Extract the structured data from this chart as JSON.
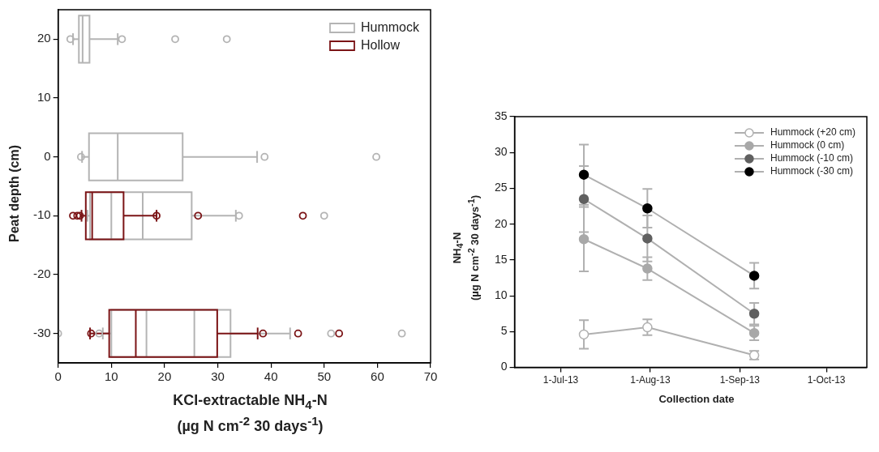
{
  "chart_data": [
    {
      "type": "box",
      "orientation": "horizontal",
      "xlabel": "KCl-extractable NH$_{4}$-N\n(µg N cm$^{-2}$ 30 days$^{-1}$)",
      "ylabel": "Peat depth (cm)",
      "xlim": [
        0,
        70
      ],
      "xticks": [
        0,
        10,
        20,
        30,
        40,
        50,
        60,
        70
      ],
      "ylim": [
        -35,
        25
      ],
      "yticks": [
        -30,
        -20,
        -10,
        0,
        10,
        20
      ],
      "grid": false,
      "legend": "top right",
      "series": [
        {
          "name": "Hummock",
          "color": "#b4b4b4",
          "x": [
            20,
            0,
            -10,
            -30
          ],
          "boxes": [
            {
              "low": 2.8,
              "q1": 3.9,
              "median": 4.6,
              "q3": 5.9,
              "high": 11.2,
              "outliers": [
                2.3,
                12.0,
                22.0,
                31.7
              ]
            },
            {
              "low": 4.5,
              "q1": 5.8,
              "median": 11.2,
              "q3": 23.4,
              "high": 37.4,
              "outliers": [
                4.3,
                38.8,
                59.8
              ]
            },
            {
              "low": 5.5,
              "q1": 6.0,
              "median": 10.0,
              "mean": 15.9,
              "q3": 25.1,
              "high": 33.4,
              "outliers": [
                34.0,
                50.0
              ]
            },
            {
              "low": 8.4,
              "q1": 10.0,
              "median": 16.6,
              "mean": 25.6,
              "q3": 32.4,
              "high": 43.6,
              "outliers": [
                0.0,
                7.7,
                51.3,
                64.6
              ]
            }
          ]
        },
        {
          "name": "Hollow",
          "color": "#7b1416",
          "x": [
            -10,
            -30
          ],
          "boxes": [
            {
              "low": 4.4,
              "q1": 5.2,
              "median": 6.4,
              "q3": 12.3,
              "high": 18.5,
              "outliers": [
                2.8,
                3.6,
                4.1,
                18.5,
                26.3,
                46.0
              ]
            },
            {
              "low": 6.0,
              "q1": 9.6,
              "median": 14.6,
              "q3": 29.9,
              "high": 37.5,
              "outliers": [
                6.2,
                38.5,
                45.1,
                52.8
              ]
            }
          ]
        }
      ]
    },
    {
      "type": "line",
      "xlabel": "Collection date",
      "ylabel": "NH$_{4}$-N\n(µg N cm$^{-2}$ 30 days$^{-1}$)",
      "x": [
        "2013-07-09",
        "2013-07-31",
        "2013-09-06"
      ],
      "xlim": [
        "2013-06-15",
        "2013-10-15"
      ],
      "xticks": [
        {
          "value": "2013-07-01",
          "label": "1-Jul-13"
        },
        {
          "value": "2013-08-01",
          "label": "1-Aug-13"
        },
        {
          "value": "2013-09-01",
          "label": "1-Sep-13"
        },
        {
          "value": "2013-10-01",
          "label": "1-Oct-13"
        }
      ],
      "ylim": [
        0,
        35
      ],
      "yticks": [
        0,
        5,
        10,
        15,
        20,
        25,
        30,
        35
      ],
      "grid": false,
      "legend": "top right",
      "marker": "circle",
      "series": [
        {
          "name": "Hummock (+20 cm)",
          "color": "#ffffff",
          "values": [
            4.6,
            5.6,
            1.7
          ],
          "errors": [
            2.0,
            1.1,
            0.6
          ]
        },
        {
          "name": "Hummock (0 cm)",
          "color": "#a8a8a8",
          "values": [
            17.9,
            13.8,
            4.8
          ],
          "errors": [
            4.5,
            1.6,
            1.0
          ]
        },
        {
          "name": "Hummock (-10 cm)",
          "color": "#606060",
          "values": [
            23.5,
            18.0,
            7.5
          ],
          "errors": [
            4.6,
            3.2,
            1.5
          ]
        },
        {
          "name": "Hummock (-30 cm)",
          "color": "#000000",
          "values": [
            26.9,
            22.2,
            12.8
          ],
          "errors": [
            4.2,
            2.7,
            1.8
          ]
        }
      ]
    }
  ]
}
